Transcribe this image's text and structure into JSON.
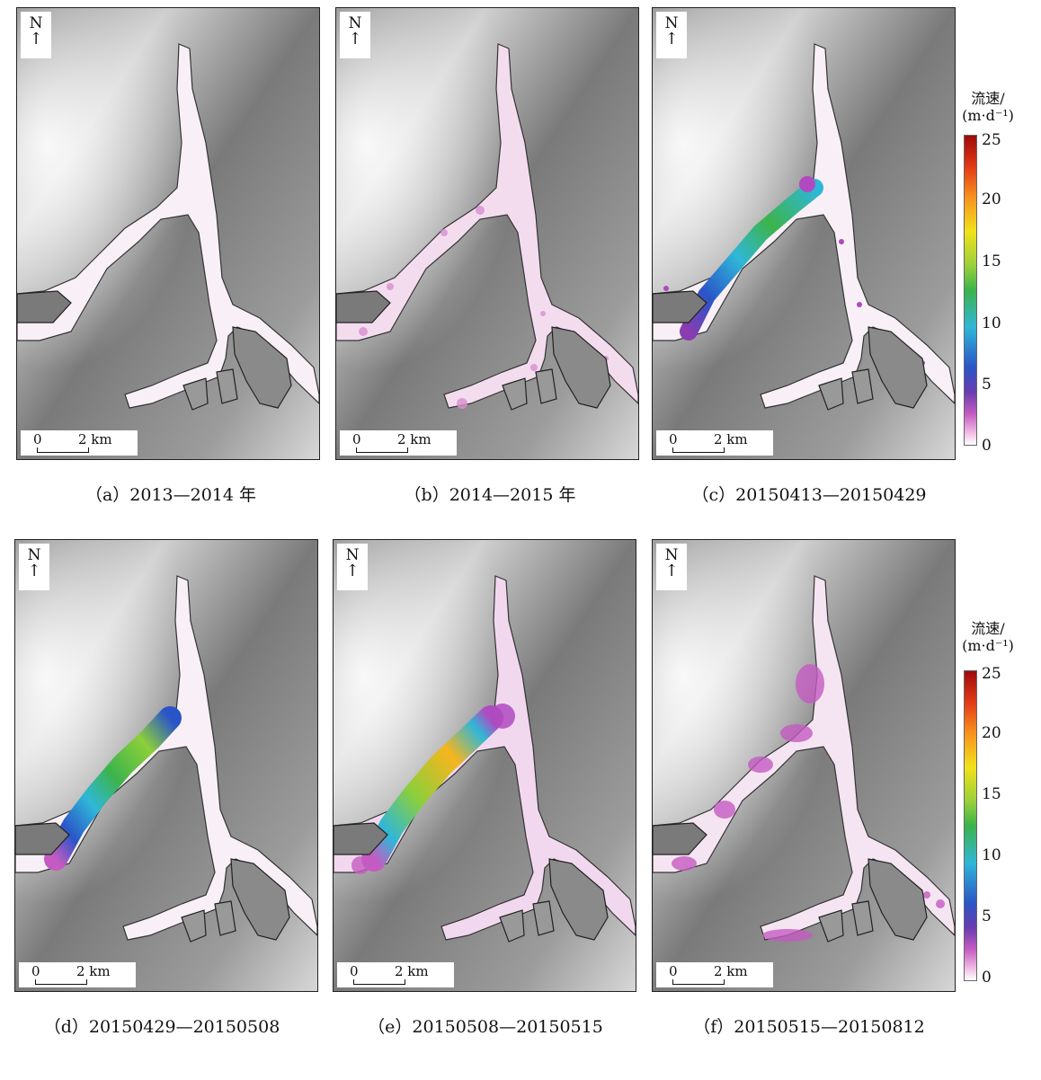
{
  "north_label": "N",
  "north_arrow": "↑",
  "scale": {
    "zero": "0",
    "distance": "2 km"
  },
  "legend": {
    "title_line1": "流速/",
    "title_line2": "(m·d⁻¹)",
    "ticks": [
      "25",
      "20",
      "15",
      "10",
      "5",
      "0"
    ],
    "colors": {
      "max": "#9e0a0a",
      "mid_high": "#f2e21a",
      "mid": "#3cb44b",
      "mid_low": "#2fb7d8",
      "low": "#6a3cb0",
      "min": "#ffffff"
    }
  },
  "panels": [
    {
      "caption": "（a）2013—2014 年"
    },
    {
      "caption": "（b）2014—2015 年"
    },
    {
      "caption": "（c）20150413—20150429"
    },
    {
      "caption": "（d）20150429—20150508"
    },
    {
      "caption": "（e）20150508—20150515"
    },
    {
      "caption": "（f）20150515—20150812"
    }
  ]
}
